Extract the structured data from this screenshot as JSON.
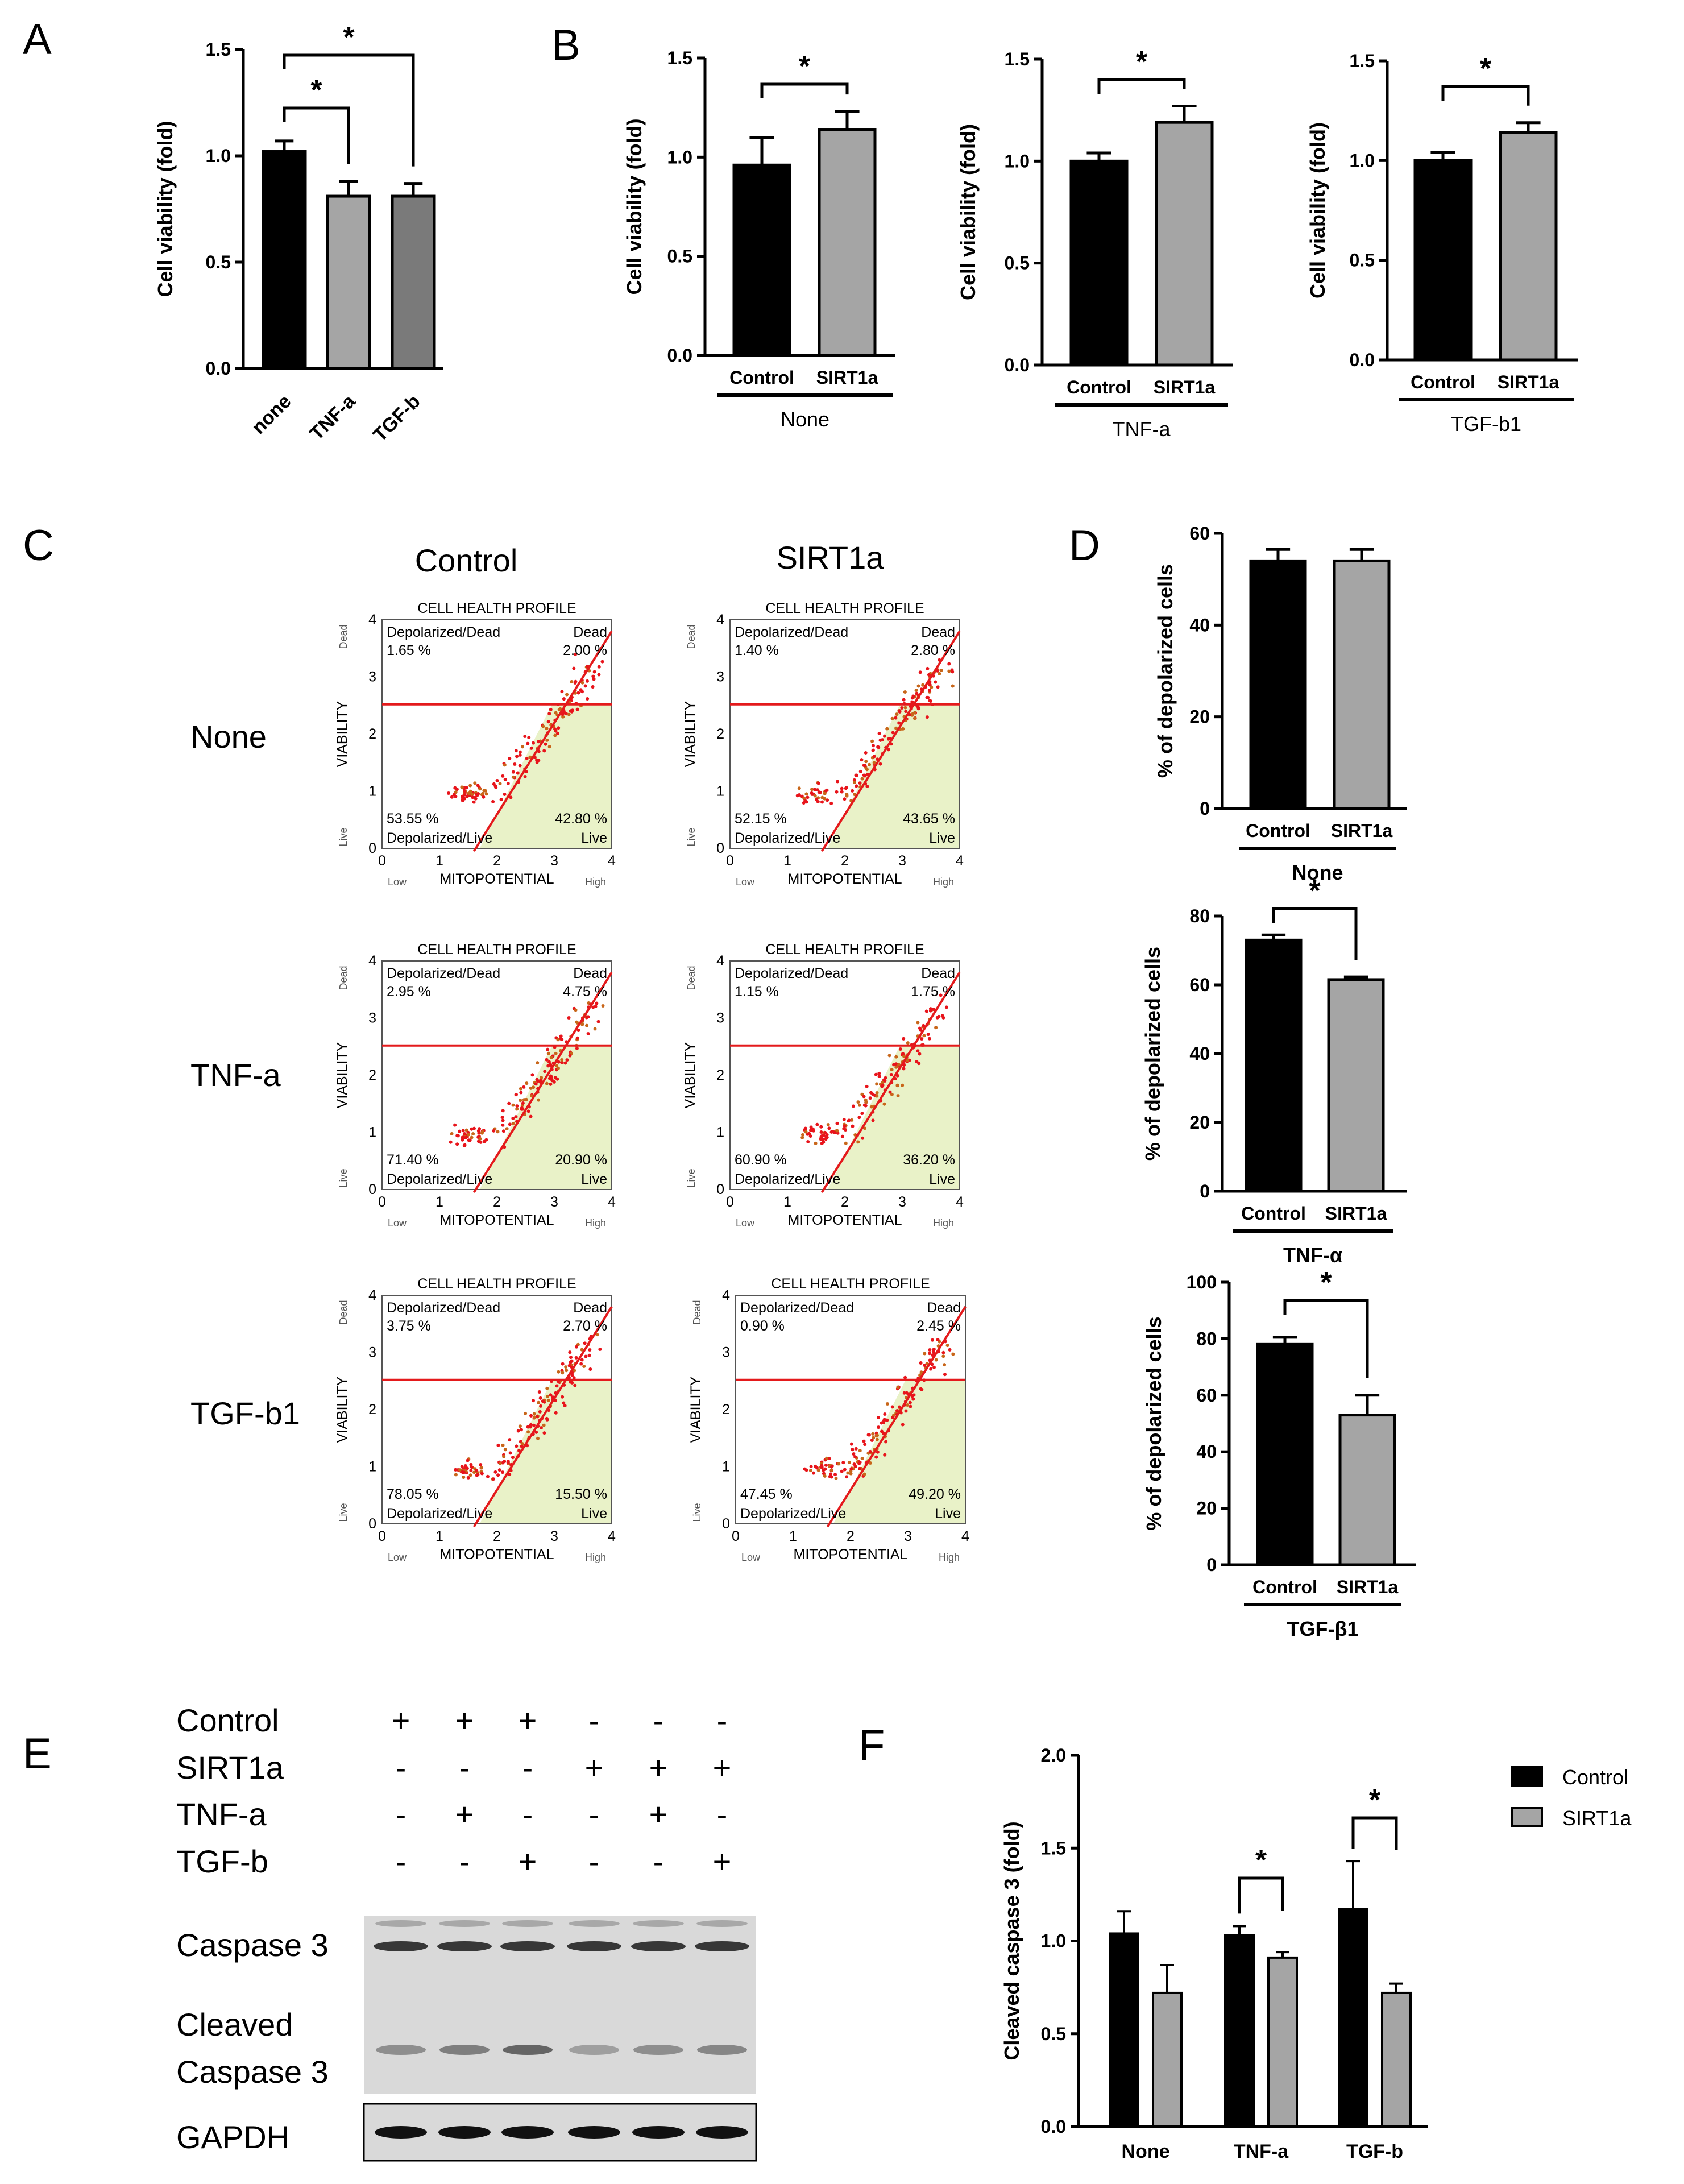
{
  "colors": {
    "black": "#000000",
    "gray": "#a5a5a5",
    "darkgray": "#7a7a7a",
    "red": "#e41a1c",
    "green": "#e9f2c8",
    "blot_bg": "#d9d9d9"
  },
  "panels": {
    "A": {
      "label": "A"
    },
    "B": {
      "label": "B"
    },
    "C": {
      "label": "C"
    },
    "D": {
      "label": "D"
    },
    "E": {
      "label": "E"
    },
    "F": {
      "label": "F"
    }
  },
  "sig_mark": "*",
  "chart_data": [
    {
      "panel": "A",
      "type": "bar",
      "title": "",
      "ylabel": "Cell viability (fold)",
      "ylim": [
        0,
        1.5
      ],
      "yticks": [
        "0.0",
        "0.5",
        "1.0",
        "1.5"
      ],
      "categories": [
        "none",
        "TNF-a",
        "TGF-b"
      ],
      "values": [
        1.02,
        0.81,
        0.81
      ],
      "errors": [
        0.05,
        0.07,
        0.06
      ],
      "colors": [
        "#000000",
        "#a5a5a5",
        "#7a7a7a"
      ],
      "significance": [
        {
          "from": 0,
          "to": 1,
          "label": "*"
        },
        {
          "from": 0,
          "to": 2,
          "label": "*"
        }
      ]
    },
    {
      "panel": "B1",
      "type": "bar",
      "ylabel": "Cell viability (fold)",
      "ylim": [
        0,
        1.5
      ],
      "yticks": [
        "0.0",
        "0.5",
        "1.0",
        "1.5"
      ],
      "categories": [
        "Control",
        "SIRT1a"
      ],
      "values": [
        0.96,
        1.14
      ],
      "errors": [
        0.14,
        0.09
      ],
      "group_label": "None",
      "significance": [
        {
          "from": 0,
          "to": 1,
          "label": "*"
        }
      ]
    },
    {
      "panel": "B2",
      "type": "bar",
      "ylabel": "Cell viability (fold)",
      "ylim": [
        0,
        1.5
      ],
      "yticks": [
        "0.0",
        "0.5",
        "1.0",
        "1.5"
      ],
      "categories": [
        "Control",
        "SIRT1a"
      ],
      "values": [
        1.0,
        1.19
      ],
      "errors": [
        0.04,
        0.08
      ],
      "group_label": "TNF-a",
      "significance": [
        {
          "from": 0,
          "to": 1,
          "label": "*"
        }
      ]
    },
    {
      "panel": "B3",
      "type": "bar",
      "ylabel": "Cell viability (fold)",
      "ylim": [
        0,
        1.5
      ],
      "yticks": [
        "0.0",
        "0.5",
        "1.0",
        "1.5"
      ],
      "categories": [
        "Control",
        "SIRT1a"
      ],
      "values": [
        1.0,
        1.14
      ],
      "errors": [
        0.04,
        0.05
      ],
      "group_label": "TGF-b1",
      "significance": [
        {
          "from": 0,
          "to": 1,
          "label": "*"
        }
      ]
    },
    {
      "panel": "D1",
      "type": "bar",
      "ylabel": "% of depolarized cells",
      "ylim": [
        0,
        60
      ],
      "yticks": [
        "0",
        "20",
        "40",
        "60"
      ],
      "categories": [
        "Control",
        "SIRT1a"
      ],
      "values": [
        54,
        54
      ],
      "errors": [
        2.5,
        2.5
      ],
      "group_label": "None",
      "significance": []
    },
    {
      "panel": "D2",
      "type": "bar",
      "ylabel": "% of depolarized cells",
      "ylim": [
        0,
        80
      ],
      "yticks": [
        "0",
        "20",
        "40",
        "60",
        "80"
      ],
      "categories": [
        "Control",
        "SIRT1a"
      ],
      "values": [
        73,
        61.5
      ],
      "errors": [
        1.5,
        0.8
      ],
      "group_label": "TNF-α",
      "significance": [
        {
          "from": 0,
          "to": 1,
          "label": "*"
        }
      ]
    },
    {
      "panel": "D3",
      "type": "bar",
      "ylabel": "% of depolarized cells",
      "ylim": [
        0,
        100
      ],
      "yticks": [
        "0",
        "20",
        "40",
        "60",
        "80",
        "100"
      ],
      "categories": [
        "Control",
        "SIRT1a"
      ],
      "values": [
        78,
        53
      ],
      "errors": [
        2.5,
        7
      ],
      "group_label": "TGF-β1",
      "significance": [
        {
          "from": 0,
          "to": 1,
          "label": "*"
        }
      ]
    },
    {
      "panel": "F",
      "type": "bar",
      "ylabel": "Cleaved caspase 3 (fold)",
      "ylim": [
        0,
        2.0
      ],
      "yticks": [
        "0.0",
        "0.5",
        "1.0",
        "1.5",
        "2.0"
      ],
      "categories": [
        "None",
        "TNF-a",
        "TGF-b"
      ],
      "series": [
        {
          "name": "Control",
          "values": [
            1.04,
            1.03,
            1.17
          ],
          "errors": [
            0.12,
            0.05,
            0.26
          ]
        },
        {
          "name": "SIRT1a",
          "values": [
            0.72,
            0.91,
            0.72
          ],
          "errors": [
            0.15,
            0.03,
            0.05
          ]
        }
      ],
      "legend": [
        "Control",
        "SIRT1a"
      ],
      "significance": [
        {
          "cat": 1,
          "label": "*"
        },
        {
          "cat": 2,
          "label": "*"
        }
      ]
    }
  ],
  "flow": {
    "column_titles": [
      "Control",
      "SIRT1a"
    ],
    "row_titles": [
      "None",
      "TNF-a",
      "TGF-b1"
    ],
    "plot_title": "CELL HEALTH PROFILE",
    "xlabel": "MITOPOTENTIAL",
    "ylabel": "VIABILITY",
    "x_low": "Low",
    "x_high": "High",
    "y_live": "Live",
    "y_dead": "Dead",
    "q_ul": "Depolarized/Dead",
    "q_ur": "Dead",
    "q_ll": "Depolarized/Live",
    "q_lr": "Live",
    "ticks": [
      "0",
      "1",
      "2",
      "3",
      "4"
    ],
    "plots": [
      {
        "ul": "1.65 %",
        "ur": "2.00 %",
        "ll": "53.55 %",
        "lr": "42.80 %"
      },
      {
        "ul": "1.40 %",
        "ur": "2.80 %",
        "ll": "52.15 %",
        "lr": "43.65 %"
      },
      {
        "ul": "2.95 %",
        "ur": "4.75 %",
        "ll": "71.40 %",
        "lr": "20.90 %"
      },
      {
        "ul": "1.15 %",
        "ur": "1.75 %",
        "ll": "60.90 %",
        "lr": "36.20 %"
      },
      {
        "ul": "3.75 %",
        "ur": "2.70 %",
        "ll": "78.05 %",
        "lr": "15.50 %"
      },
      {
        "ul": "0.90 %",
        "ur": "2.45 %",
        "ll": "47.45 %",
        "lr": "49.20 %"
      }
    ]
  },
  "blot": {
    "conditions": [
      {
        "label": "Control",
        "marks": [
          "+",
          "+",
          "+",
          "-",
          "-",
          "-"
        ]
      },
      {
        "label": "SIRT1a",
        "marks": [
          "-",
          "-",
          "-",
          "+",
          "+",
          "+"
        ]
      },
      {
        "label": "TNF-a",
        "marks": [
          "-",
          "+",
          "-",
          "-",
          "+",
          "-"
        ]
      },
      {
        "label": "TGF-b",
        "marks": [
          "-",
          "-",
          "+",
          "-",
          "-",
          "+"
        ]
      }
    ],
    "band_labels": {
      "caspase": "Caspase 3",
      "cleaved1": "Cleaved",
      "cleaved2": "Caspase 3",
      "gapdh": "GAPDH"
    }
  }
}
